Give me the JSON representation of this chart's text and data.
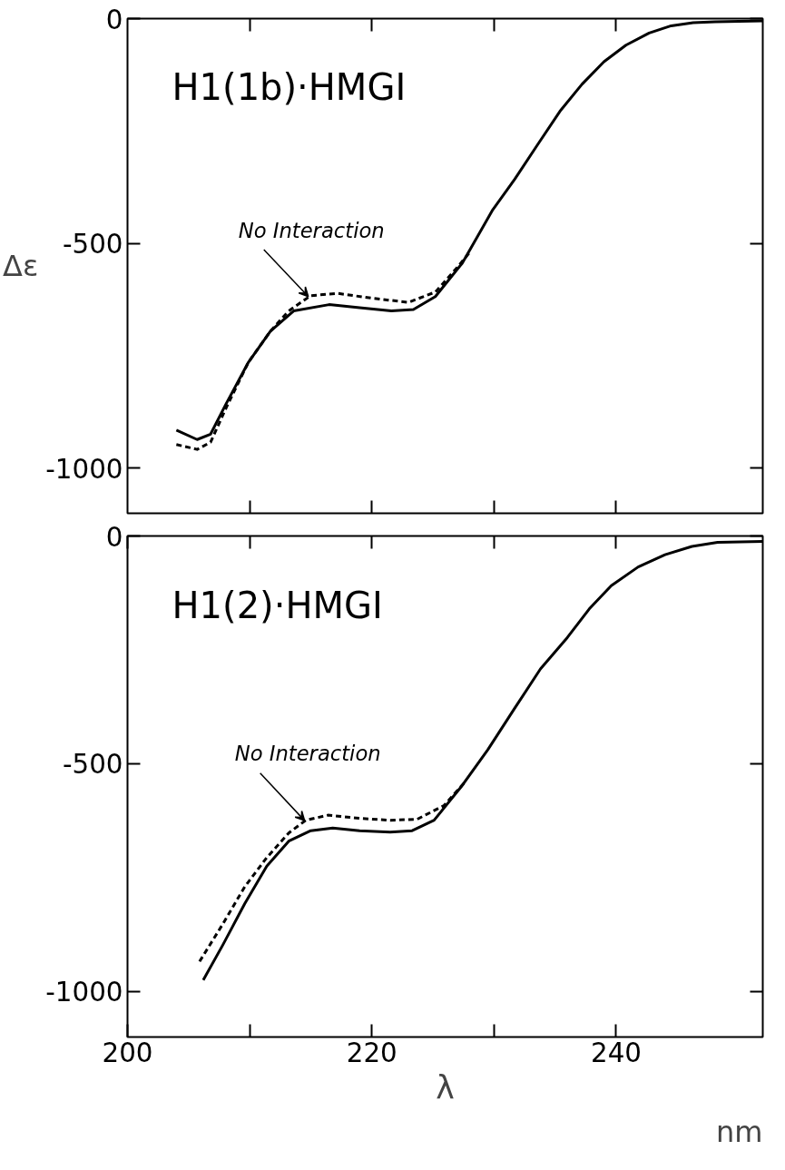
{
  "chart_data": [
    {
      "type": "line",
      "title": "H1(1b)·HMGI",
      "ylabel": "Δε",
      "xlim": [
        200,
        252
      ],
      "ylim": [
        -1100,
        0
      ],
      "xticks": [
        210,
        220,
        230,
        240
      ],
      "yticks": [
        0,
        -500,
        -1000
      ],
      "tick_labels": "y",
      "grid": false,
      "annotations": [
        {
          "text": "No Interaction",
          "x": 214.8,
          "y": -618
        }
      ],
      "series": [
        {
          "color": "#000000",
          "line_style": "solid",
          "x": [
            204.0,
            205.7,
            206.8,
            208.1,
            209.9,
            211.7,
            213.6,
            216.5,
            219.0,
            221.6,
            223.4,
            225.2,
            227.4,
            229.9,
            231.7,
            233.6,
            235.4,
            237.2,
            239.0,
            240.8,
            242.7,
            244.5,
            246.3,
            248.1,
            252.0
          ],
          "values": [
            -915,
            -936,
            -924,
            -855,
            -764,
            -695,
            -650,
            -636,
            -643,
            -650,
            -647,
            -618,
            -544,
            -425,
            -357,
            -279,
            -206,
            -146,
            -96,
            -59,
            -32,
            -16,
            -9,
            -7,
            -5
          ]
        },
        {
          "color": "#000000",
          "line_style": "dashed",
          "x": [
            204.0,
            205.7,
            206.8,
            208.1,
            209.9,
            211.7,
            213.2,
            215.0,
            217.2,
            220.1,
            223.0,
            225.2,
            227.0,
            228.0
          ],
          "values": [
            -947,
            -958,
            -942,
            -864,
            -764,
            -695,
            -650,
            -616,
            -611,
            -622,
            -631,
            -608,
            -553,
            -520
          ]
        }
      ]
    },
    {
      "type": "line",
      "title": "H1(2)·HMGI",
      "xlabel": "λ",
      "xlim": [
        200,
        252
      ],
      "ylim": [
        -1100,
        0
      ],
      "xticks": [
        200,
        {
          "value": 210,
          "label": null
        },
        220,
        {
          "value": 230,
          "label": null
        },
        240
      ],
      "yticks": [
        0,
        -500,
        -1000
      ],
      "grid": false,
      "annotations": [
        {
          "text": "No Interaction",
          "x": 214.5,
          "y": -625
        },
        "nm"
      ],
      "series": [
        {
          "color": "#000000",
          "line_style": "solid",
          "x": [
            206.2,
            207.8,
            209.6,
            211.4,
            213.2,
            215.0,
            216.8,
            219.0,
            221.5,
            223.3,
            225.1,
            227.3,
            229.5,
            231.7,
            233.8,
            236.0,
            237.8,
            239.6,
            241.8,
            244.0,
            246.2,
            248.3,
            252.0
          ],
          "values": [
            -975,
            -898,
            -807,
            -725,
            -670,
            -647,
            -641,
            -647,
            -650,
            -647,
            -624,
            -551,
            -469,
            -378,
            -292,
            -223,
            -160,
            -109,
            -68,
            -41,
            -23,
            -14,
            -12
          ]
        },
        {
          "color": "#000000",
          "line_style": "dashed",
          "x": [
            205.9,
            207.8,
            209.6,
            211.4,
            213.2,
            214.6,
            216.4,
            219.0,
            221.5,
            223.7,
            225.9,
            227.7
          ],
          "values": [
            -934,
            -852,
            -770,
            -706,
            -652,
            -624,
            -613,
            -620,
            -624,
            -622,
            -592,
            -538
          ]
        }
      ]
    }
  ]
}
